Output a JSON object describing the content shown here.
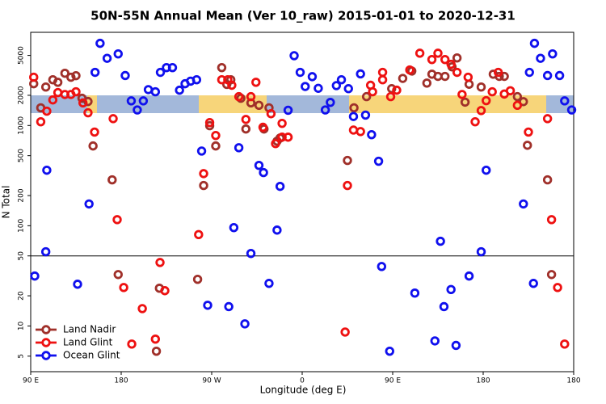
{
  "chart_data": {
    "type": "scatter",
    "title": "50N-55N Annual Mean (Ver 10_raw)   2015-01-01 to 2020-12-31",
    "xlabel": "Longitude (deg E)",
    "ylabel": "N Total",
    "xlim": [
      90,
      630
    ],
    "xticks": [
      {
        "value": 90,
        "label": "90 E"
      },
      {
        "value": 180,
        "label": "180"
      },
      {
        "value": 270,
        "label": "90 W"
      },
      {
        "value": 360,
        "label": "0"
      },
      {
        "value": 450,
        "label": "90 E"
      },
      {
        "value": 540,
        "label": "180"
      },
      {
        "value": 630,
        "label": "180"
      }
    ],
    "ylim": [
      3.5,
      8500
    ],
    "log_y": true,
    "yticks": [
      5,
      10,
      20,
      50,
      100,
      200,
      500,
      1000,
      2000,
      5000
    ],
    "reference_line": 50,
    "legend": "lower left",
    "series": [
      {
        "name": "Land Nadir",
        "color": "#a0302a",
        "x": [
          93,
          100,
          105,
          112,
          117,
          124,
          130,
          135,
          141,
          147,
          152,
          171,
          177,
          215,
          218,
          256,
          262,
          268,
          274,
          280,
          285,
          289,
          299,
          304,
          309,
          317,
          322,
          327,
          335,
          338,
          405,
          411.5,
          424,
          449,
          460,
          469,
          484,
          489,
          495,
          502,
          509,
          514,
          522,
          526,
          538,
          550,
          556,
          561,
          574,
          580,
          584,
          604,
          608
        ],
        "values": [
          2610,
          1500,
          2420,
          2860,
          2700,
          3320,
          3030,
          3140,
          1870,
          1735,
          625,
          287,
          32.6,
          5.6,
          23.8,
          29.2,
          252,
          995,
          625,
          3780,
          2570,
          2860,
          1870,
          923,
          1680,
          1590,
          923,
          1500,
          698,
          750,
          448,
          1500,
          1940,
          2330,
          2950,
          3490,
          2650,
          3250,
          3090,
          3090,
          3850,
          4720,
          1710,
          2580,
          2420,
          3250,
          3090,
          3090,
          1940,
          1730,
          635,
          287,
          32.6
        ]
      },
      {
        "name": "Land Glint",
        "color": "#ee1111",
        "x": [
          93,
          100,
          106,
          112,
          117,
          124,
          130,
          135,
          142,
          147,
          153.5,
          172,
          176,
          182.5,
          190.5,
          201,
          214,
          218.6,
          223.4,
          257,
          262,
          268,
          274,
          280,
          286,
          290,
          297,
          304,
          309,
          314,
          321,
          329,
          333.5,
          340,
          340,
          346,
          402.7,
          405,
          411,
          418,
          428,
          430,
          440,
          440,
          448,
          454,
          467,
          477,
          489,
          495,
          502,
          508,
          514,
          519,
          525,
          532,
          538,
          543,
          549,
          555,
          561,
          567,
          574,
          585,
          604,
          608,
          614,
          621
        ],
        "values": [
          3030,
          1090,
          1390,
          1800,
          2130,
          2040,
          2040,
          2170,
          1680,
          1340,
          860,
          1170,
          115,
          24.2,
          6.6,
          14.9,
          7.4,
          43,
          22.5,
          81.6,
          331,
          1070,
          795,
          2860,
          2860,
          2520,
          1940,
          1150,
          1940,
          2700,
          960,
          1310,
          660,
          1050,
          765,
          765,
          8.7,
          252,
          900,
          870,
          2520,
          2170,
          3390,
          2860,
          1940,
          2250,
          3580,
          5260,
          4550,
          5260,
          4550,
          4080,
          3390,
          2040,
          3030,
          1090,
          1410,
          1770,
          2170,
          3390,
          2060,
          2220,
          1590,
          860,
          1170,
          115,
          24.2,
          6.6
        ]
      },
      {
        "name": "Ocean Glint",
        "color": "#1010ee",
        "x": [
          94,
          105,
          106,
          136.6,
          148,
          154,
          159,
          166,
          177,
          184,
          190,
          196,
          202,
          207,
          214,
          219,
          225,
          231,
          238,
          243.5,
          249,
          255,
          260,
          266,
          287,
          292,
          297,
          303,
          309,
          317,
          321.5,
          327,
          335,
          338,
          346,
          352,
          358,
          363,
          370,
          376,
          383,
          388,
          394,
          399,
          406,
          411,
          418,
          423,
          429,
          436,
          439,
          447,
          472,
          492,
          497.5,
          501,
          508,
          513,
          526,
          538,
          543,
          580,
          586,
          590,
          591,
          597,
          604,
          609,
          616,
          621,
          628
        ],
        "values": [
          31.5,
          55,
          358,
          26.1,
          165,
          3390,
          6600,
          4680,
          5180,
          3150,
          1760,
          1430,
          1760,
          2280,
          2170,
          3390,
          3780,
          3780,
          2250,
          2610,
          2770,
          2860,
          556,
          16.1,
          15.6,
          95.8,
          600,
          10.5,
          52.9,
          400,
          339,
          26.6,
          90.5,
          247,
          1420,
          4970,
          3390,
          2450,
          3070,
          2350,
          1430,
          1700,
          2500,
          2860,
          2330,
          1230,
          3270,
          1270,
          810,
          440,
          39.2,
          5.6,
          21.3,
          7.1,
          70,
          15.6,
          23.1,
          6.4,
          31.5,
          55,
          358,
          165,
          3390,
          26.6,
          6600,
          4680,
          3150,
          5180,
          3150,
          1760,
          1430
        ]
      }
    ]
  }
}
